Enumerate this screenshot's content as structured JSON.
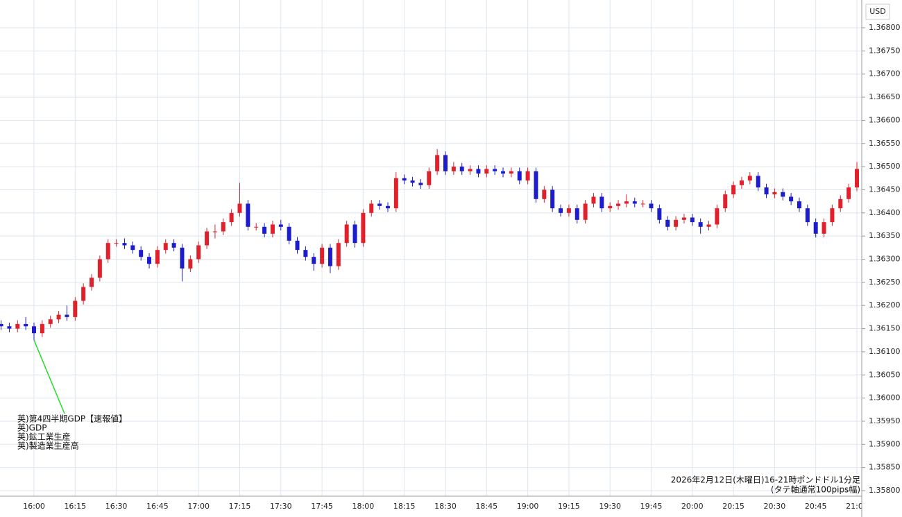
{
  "chart_data": {
    "type": "candlestick",
    "title": "2026年2月12日(木曜日)16-21時ポンドドル1分足",
    "subtitle": "(タテ軸通常100pips幅)",
    "y_axis_label": "USD",
    "annotations": [
      "英)第4四半期GDP【速報値】",
      "英)GDP",
      "英)鉱工業生産",
      "英)製造業生産高"
    ],
    "up_color": "#e0202a",
    "down_color": "#1c1ccc",
    "grid": true,
    "categories": [
      null,
      null,
      null,
      null,
      "16:00",
      null,
      null,
      null,
      null,
      "16:15",
      null,
      null,
      null,
      null,
      "16:30",
      null,
      null,
      null,
      null,
      "16:45",
      null,
      null,
      null,
      null,
      "17:00",
      null,
      null,
      null,
      null,
      "17:15",
      null,
      null,
      null,
      null,
      "17:30",
      null,
      null,
      null,
      null,
      "17:45",
      null,
      null,
      null,
      null,
      "18:00",
      null,
      null,
      null,
      null,
      "18:15",
      null,
      null,
      null,
      null,
      "18:30",
      null,
      null,
      null,
      null,
      "18:45",
      null,
      null,
      null,
      null,
      "19:00",
      null,
      null,
      null,
      null,
      "19:15",
      null,
      null,
      null,
      null,
      "19:30",
      null,
      null,
      null,
      null,
      "19:45",
      null,
      null,
      null,
      null,
      "20:00",
      null,
      null,
      null,
      null,
      "20:15",
      null,
      null,
      null,
      null,
      "20:30",
      null,
      null,
      null,
      null,
      "20:45",
      null,
      null,
      null,
      null,
      "21:00"
    ],
    "open": [
      1.3616,
      1.36155,
      1.3615,
      1.3616,
      1.36155,
      1.3614,
      1.3616,
      1.3617,
      1.3618,
      1.36175,
      1.3621,
      1.3624,
      1.3626,
      1.363,
      1.36335,
      1.36335,
      1.3633,
      1.3632,
      1.36305,
      1.3629,
      1.3632,
      1.36335,
      1.36325,
      1.3628,
      1.363,
      1.3633,
      1.3636,
      1.3636,
      1.3638,
      1.364,
      1.3642,
      1.3637,
      1.3637,
      1.36355,
      1.36375,
      1.3637,
      1.3634,
      1.3632,
      1.36305,
      1.3629,
      1.36325,
      1.36285,
      1.36335,
      1.36375,
      1.36335,
      1.364,
      1.3642,
      1.36415,
      1.3641,
      1.36475,
      1.3647,
      1.36465,
      1.3646,
      1.3649,
      1.36525,
      1.3649,
      1.365,
      1.3649,
      1.36495,
      1.36485,
      1.36495,
      1.3649,
      1.36485,
      1.3649,
      1.3647,
      1.3649,
      1.3643,
      1.3645,
      1.3641,
      1.364,
      1.3641,
      1.36385,
      1.3642,
      1.36435,
      1.3641,
      1.36415,
      1.3642,
      1.36425,
      1.3642,
      1.3642,
      1.3641,
      1.36385,
      1.3637,
      1.36385,
      1.3639,
      1.3638,
      1.3637,
      1.36375,
      1.3641,
      1.3644,
      1.3646,
      1.3647,
      1.3648,
      1.36455,
      1.3644,
      1.36445,
      1.36435,
      1.36425,
      1.3641,
      1.3638,
      1.36355,
      1.3638,
      1.3641,
      1.3643,
      1.36455
    ],
    "high": [
      1.36168,
      1.36163,
      1.36168,
      1.36175,
      1.36163,
      1.36168,
      1.36178,
      1.36188,
      1.362,
      1.36218,
      1.36248,
      1.36268,
      1.36308,
      1.36343,
      1.36343,
      1.36345,
      1.36338,
      1.36328,
      1.36313,
      1.36328,
      1.36343,
      1.36343,
      1.36333,
      1.36308,
      1.36338,
      1.36368,
      1.36375,
      1.36388,
      1.36408,
      1.36465,
      1.36428,
      1.36378,
      1.36378,
      1.36383,
      1.36385,
      1.36378,
      1.36348,
      1.36328,
      1.36313,
      1.36333,
      1.36333,
      1.36343,
      1.36383,
      1.36383,
      1.36408,
      1.36428,
      1.36428,
      1.36423,
      1.36488,
      1.36483,
      1.36478,
      1.36473,
      1.36498,
      1.36538,
      1.36533,
      1.3651,
      1.36508,
      1.36503,
      1.36503,
      1.36503,
      1.36503,
      1.36498,
      1.36498,
      1.36498,
      1.36498,
      1.36498,
      1.36458,
      1.36458,
      1.36418,
      1.36418,
      1.36418,
      1.36428,
      1.36443,
      1.36443,
      1.36423,
      1.36428,
      1.3644,
      1.36433,
      1.36428,
      1.36428,
      1.36418,
      1.36393,
      1.36393,
      1.36398,
      1.36398,
      1.36388,
      1.36383,
      1.36418,
      1.36448,
      1.36468,
      1.36478,
      1.36488,
      1.36488,
      1.36463,
      1.36453,
      1.36453,
      1.36443,
      1.36433,
      1.36418,
      1.36388,
      1.36388,
      1.36418,
      1.36438,
      1.36463,
      1.3651
    ],
    "low": [
      1.36147,
      1.36142,
      1.36142,
      1.36147,
      1.36125,
      1.36132,
      1.36152,
      1.36162,
      1.36167,
      1.36167,
      1.36202,
      1.36232,
      1.36252,
      1.36292,
      1.36327,
      1.36322,
      1.36312,
      1.36297,
      1.3628,
      1.36282,
      1.36312,
      1.36317,
      1.36252,
      1.36272,
      1.36292,
      1.36322,
      1.36345,
      1.36352,
      1.36372,
      1.36392,
      1.36362,
      1.36362,
      1.36347,
      1.36347,
      1.36362,
      1.36332,
      1.36312,
      1.36297,
      1.36275,
      1.36282,
      1.3627,
      1.36277,
      1.36327,
      1.36325,
      1.36327,
      1.36392,
      1.36407,
      1.36402,
      1.36402,
      1.36462,
      1.36457,
      1.36452,
      1.36452,
      1.36482,
      1.36482,
      1.36482,
      1.36482,
      1.36482,
      1.36477,
      1.36477,
      1.36482,
      1.36477,
      1.36477,
      1.36462,
      1.36462,
      1.36422,
      1.36422,
      1.36402,
      1.36392,
      1.36392,
      1.36377,
      1.36377,
      1.36412,
      1.36402,
      1.36402,
      1.36407,
      1.36412,
      1.36412,
      1.36412,
      1.36402,
      1.36377,
      1.36362,
      1.36362,
      1.36377,
      1.36372,
      1.36355,
      1.36362,
      1.36367,
      1.36402,
      1.36432,
      1.36452,
      1.36462,
      1.36447,
      1.36432,
      1.36432,
      1.36427,
      1.36417,
      1.36402,
      1.36372,
      1.36347,
      1.36347,
      1.36372,
      1.36402,
      1.36422,
      1.36447
    ],
    "close": [
      1.36155,
      1.3615,
      1.3616,
      1.36155,
      1.3614,
      1.3616,
      1.3617,
      1.3618,
      1.36175,
      1.3621,
      1.3624,
      1.3626,
      1.363,
      1.36335,
      1.36335,
      1.3633,
      1.3632,
      1.36305,
      1.3629,
      1.3632,
      1.36335,
      1.36325,
      1.3628,
      1.363,
      1.3633,
      1.3636,
      1.3636,
      1.3638,
      1.364,
      1.3642,
      1.3637,
      1.3637,
      1.36355,
      1.36375,
      1.3637,
      1.3634,
      1.3632,
      1.36305,
      1.3629,
      1.36325,
      1.36285,
      1.36335,
      1.36375,
      1.36335,
      1.364,
      1.3642,
      1.36415,
      1.3641,
      1.36475,
      1.3647,
      1.36465,
      1.3646,
      1.3649,
      1.36525,
      1.3649,
      1.365,
      1.3649,
      1.36495,
      1.36485,
      1.36495,
      1.3649,
      1.36485,
      1.3649,
      1.3647,
      1.3649,
      1.3643,
      1.3645,
      1.3641,
      1.364,
      1.3641,
      1.36385,
      1.3642,
      1.36435,
      1.3641,
      1.36415,
      1.3642,
      1.36425,
      1.3642,
      1.3642,
      1.3641,
      1.36385,
      1.3637,
      1.36385,
      1.3639,
      1.3638,
      1.3637,
      1.36375,
      1.3641,
      1.3644,
      1.3646,
      1.3647,
      1.3648,
      1.36455,
      1.3644,
      1.36445,
      1.36435,
      1.36425,
      1.3641,
      1.3638,
      1.36355,
      1.3638,
      1.3641,
      1.3643,
      1.36455,
      1.36495
    ],
    "ylim": [
      1.35788,
      1.3686
    ],
    "yticks": [
      {
        "value": 1.358,
        "label": "1.35800"
      },
      {
        "value": 1.3585,
        "label": "1.35850"
      },
      {
        "value": 1.359,
        "label": "1.35900"
      },
      {
        "value": 1.3595,
        "label": "1.35950"
      },
      {
        "value": 1.36,
        "label": "1.36000"
      },
      {
        "value": 1.3605,
        "label": "1.36050"
      },
      {
        "value": 1.361,
        "label": "1.36100"
      },
      {
        "value": 1.3615,
        "label": "1.36150"
      },
      {
        "value": 1.362,
        "label": "1.36200"
      },
      {
        "value": 1.3625,
        "label": "1.36250"
      },
      {
        "value": 1.363,
        "label": "1.36300"
      },
      {
        "value": 1.3635,
        "label": "1.36350"
      },
      {
        "value": 1.364,
        "label": "1.36400"
      },
      {
        "value": 1.3645,
        "label": "1.36450"
      },
      {
        "value": 1.365,
        "label": "1.36500"
      },
      {
        "value": 1.3655,
        "label": "1.36550"
      },
      {
        "value": 1.366,
        "label": "1.36600"
      },
      {
        "value": 1.3665,
        "label": "1.36650"
      },
      {
        "value": 1.367,
        "label": "1.36700"
      },
      {
        "value": 1.3675,
        "label": "1.36750"
      },
      {
        "value": 1.368,
        "label": "1.36800"
      }
    ]
  }
}
